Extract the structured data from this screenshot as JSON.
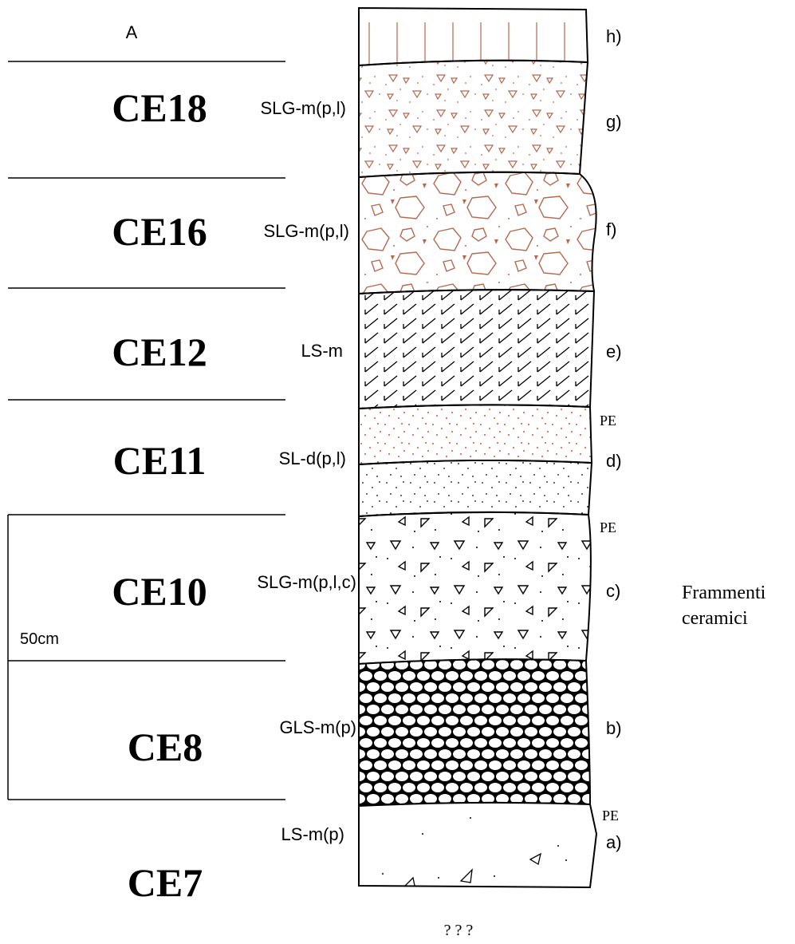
{
  "title": "A",
  "units": [
    {
      "name": "CE18",
      "code": "SLG-m(p,l)"
    },
    {
      "name": "CE16",
      "code": "SLG-m(p,l)"
    },
    {
      "name": "CE12",
      "code": "LS-m"
    },
    {
      "name": "CE11",
      "code": "SL-d(p,l)"
    },
    {
      "name": "CE10",
      "code": "SLG-m(p,l,c)"
    },
    {
      "name": "CE8",
      "code": "GLS-m(p)"
    },
    {
      "name": "CE7",
      "code": "LS-m(p)"
    }
  ],
  "layers": [
    "h)",
    "g)",
    "f)",
    "e)",
    "d)",
    "c)",
    "b)",
    "a)"
  ],
  "pe_markers": [
    "PE",
    "PE",
    "PE"
  ],
  "scale_label": "50cm",
  "note": [
    "Frammenti",
    "ceramici"
  ],
  "footer": "? ? ?"
}
